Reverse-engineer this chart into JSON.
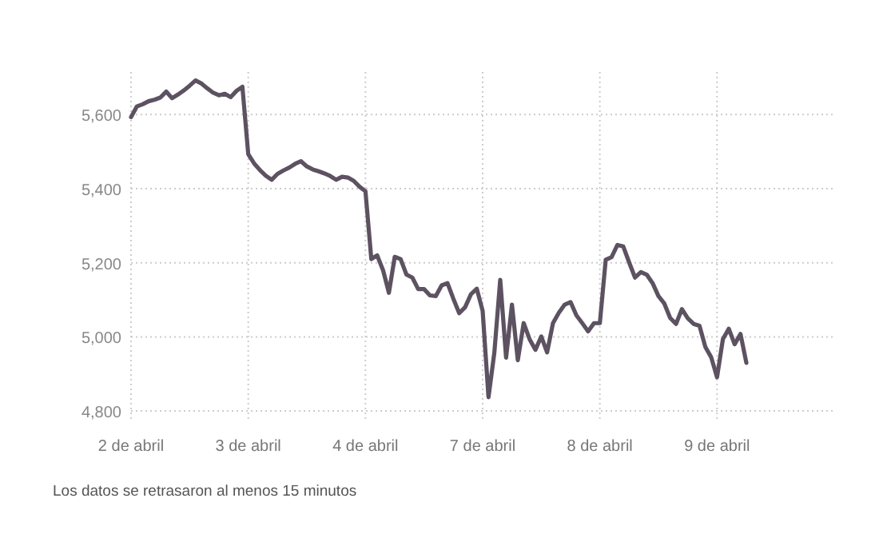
{
  "chart_data": {
    "type": "line",
    "categories": [
      "2 de abril",
      null,
      null,
      null,
      null,
      null,
      null,
      null,
      null,
      null,
      null,
      null,
      null,
      null,
      null,
      null,
      null,
      null,
      null,
      null,
      "3 de abril",
      null,
      null,
      null,
      null,
      null,
      null,
      null,
      null,
      null,
      null,
      null,
      null,
      null,
      null,
      null,
      null,
      null,
      null,
      null,
      "4 de abril",
      null,
      null,
      null,
      null,
      null,
      null,
      null,
      null,
      null,
      null,
      null,
      null,
      null,
      null,
      null,
      null,
      null,
      null,
      null,
      "7 de abril",
      null,
      null,
      null,
      null,
      null,
      null,
      null,
      null,
      null,
      null,
      null,
      null,
      null,
      null,
      null,
      null,
      null,
      null,
      null,
      "8 de abril",
      null,
      null,
      null,
      null,
      null,
      null,
      null,
      null,
      null,
      null,
      null,
      null,
      null,
      null,
      null,
      null,
      null,
      null,
      null,
      "9 de abril",
      null,
      null,
      null,
      null,
      null,
      null,
      null,
      null,
      null,
      null,
      null,
      null,
      null,
      null,
      null,
      null,
      null,
      null,
      null
    ],
    "series": [
      {
        "color": "#5d5261",
        "values": [
          5593,
          5622,
          5628,
          5636,
          5640,
          5646,
          5662,
          5644,
          5654,
          5665,
          5678,
          5692,
          5684,
          5671,
          5659,
          5652,
          5656,
          5647,
          5664,
          5675,
          5493,
          5468,
          5450,
          5435,
          5424,
          5440,
          5449,
          5457,
          5467,
          5474,
          5460,
          5452,
          5447,
          5441,
          5434,
          5424,
          5432,
          5430,
          5421,
          5405,
          5393,
          5210,
          5220,
          5180,
          5119,
          5216,
          5210,
          5168,
          5160,
          5129,
          5129,
          5112,
          5110,
          5139,
          5145,
          5103,
          5064,
          5080,
          5115,
          5130,
          5070,
          4837,
          4958,
          5154,
          4944,
          5087,
          4937,
          5037,
          4994,
          4965,
          5001,
          4958,
          5037,
          5065,
          5087,
          5094,
          5058,
          5037,
          5015,
          5037,
          5037,
          5208,
          5215,
          5248,
          5244,
          5201,
          5160,
          5175,
          5168,
          5145,
          5110,
          5090,
          5051,
          5035,
          5075,
          5050,
          5035,
          5030,
          4973,
          4945,
          4891,
          4994,
          5022,
          4980,
          5008,
          4930,
          null,
          null,
          null,
          null,
          null,
          null,
          null,
          null,
          null,
          null,
          null,
          null,
          null,
          null
        ]
      }
    ],
    "ylim": [
      4770,
      5715
    ],
    "yticks": [
      {
        "value": 4800,
        "label": "4,800"
      },
      {
        "value": 5000,
        "label": "5,000"
      },
      {
        "value": 5200,
        "label": "5,200"
      },
      {
        "value": 5400,
        "label": "5,400"
      },
      {
        "value": 5600,
        "label": "5,600"
      }
    ],
    "grid": true,
    "line_style": "solid",
    "marker": "none",
    "annotations": [
      "Los datos se retrasaron al menos 15 minutos"
    ]
  }
}
